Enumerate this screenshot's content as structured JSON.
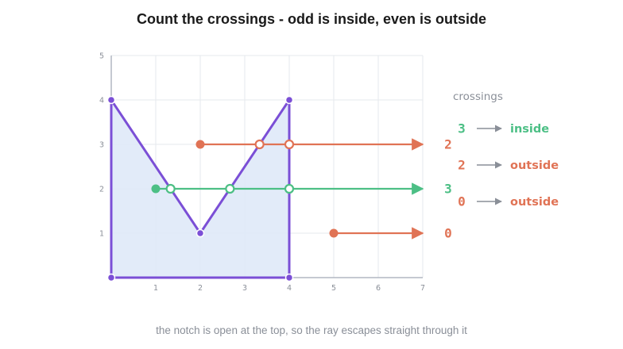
{
  "title": "Count the crossings  -  odd is inside, even is outside",
  "caption": "the notch is open at the top, so the ray escapes straight through it",
  "colors": {
    "polygon_stroke": "#7b4fd6",
    "polygon_fill": "#dfe9f8",
    "inside": "#4cbf85",
    "outside": "#e07355",
    "grid": "#e6e8ec",
    "axis": "#b2b7c2",
    "muted": "#8a8f98"
  },
  "axes": {
    "x_ticks": [
      "1",
      "2",
      "3",
      "4",
      "5",
      "6",
      "7"
    ],
    "y_ticks": [
      "1",
      "2",
      "3",
      "4",
      "5"
    ],
    "xlim": [
      0,
      7
    ],
    "ylim": [
      0,
      5
    ]
  },
  "polygon": [
    [
      0,
      0
    ],
    [
      0,
      4
    ],
    [
      2,
      1
    ],
    [
      4,
      4
    ],
    [
      4,
      0
    ]
  ],
  "rays": [
    {
      "origin": [
        2,
        3
      ],
      "end_x": 7,
      "crossings": [
        [
          3.333,
          3
        ],
        [
          4,
          3
        ]
      ],
      "count": "2",
      "result": "outside"
    },
    {
      "origin": [
        1,
        2
      ],
      "end_x": 7,
      "crossings": [
        [
          1.333,
          2
        ],
        [
          2.667,
          2
        ],
        [
          4,
          2
        ]
      ],
      "count": "3",
      "result": "inside"
    },
    {
      "origin": [
        5,
        1
      ],
      "end_x": 7,
      "crossings": [],
      "count": "0",
      "result": "outside"
    }
  ],
  "legend": {
    "header": "crossings",
    "rows": [
      {
        "count": "3",
        "label": "inside",
        "kind": "inside"
      },
      {
        "count": "2",
        "label": "outside",
        "kind": "outside"
      },
      {
        "count": "0",
        "label": "outside",
        "kind": "outside"
      }
    ]
  }
}
